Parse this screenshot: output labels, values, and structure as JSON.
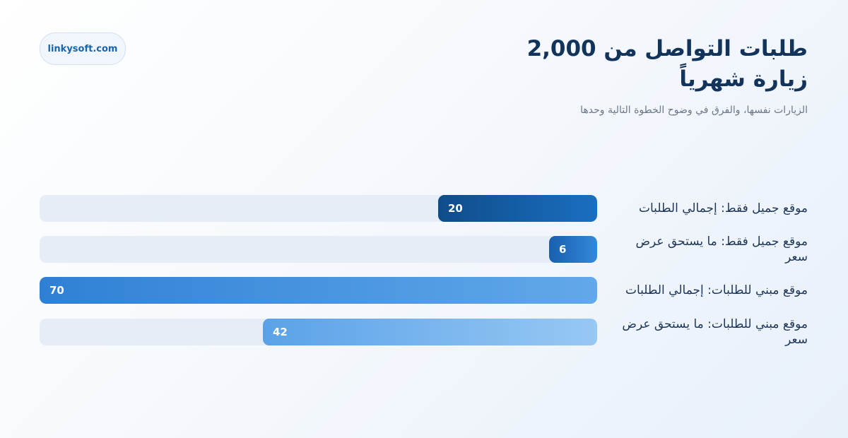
{
  "brand": {
    "text": "linkysoft.com"
  },
  "title": "طلبات التواصل من 2,000 زيارة شهرياً",
  "subtitle": "الزيارات نفسها، والفرق في وضوح الخطوة التالية وحدها",
  "chart_data": {
    "type": "bar",
    "orientation": "horizontal",
    "title": "طلبات التواصل من 2,000 زيارة شهرياً",
    "subtitle": "الزيارات نفسها، والفرق في وضوح الخطوة التالية وحدها",
    "categories": [
      "موقع جميل فقط: إجمالي الطلبات",
      "موقع جميل فقط: ما يستحق عرض سعر",
      "موقع مبني للطلبات: إجمالي الطلبات",
      "موقع مبني للطلبات: ما يستحق عرض سعر"
    ],
    "values": [
      20,
      6,
      70,
      42
    ],
    "value_labels": [
      "20",
      "6",
      "70",
      "42"
    ],
    "xlim": [
      0,
      70
    ],
    "grid": false,
    "legend": "none",
    "colors": {
      "bar_gradients": [
        [
          "#0f4c8a",
          "#1a6fc0"
        ],
        [
          "#1a5fb0",
          "#3388d8"
        ],
        [
          "#2f80d5",
          "#62a8ea"
        ],
        [
          "#5aa2e8",
          "#98c8f4"
        ]
      ],
      "track": "#e6edf6"
    }
  }
}
